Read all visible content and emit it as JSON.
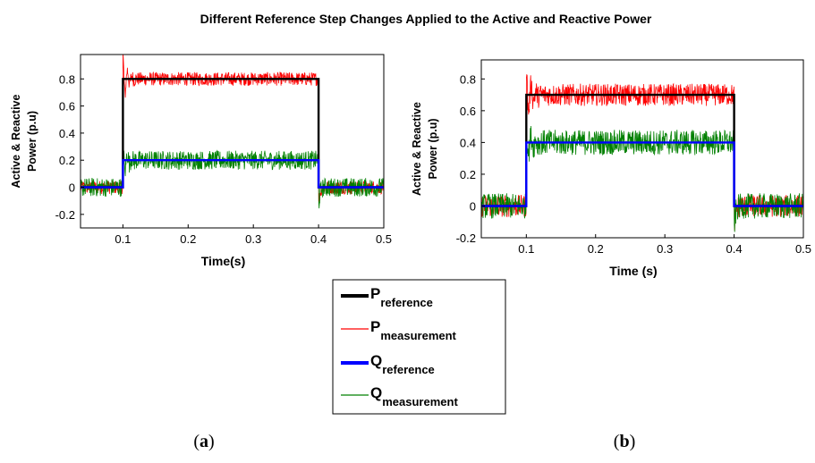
{
  "figure": {
    "title": "Different Reference Step Changes Applied to the Active and Reactive Power",
    "caption_a_open": "(",
    "caption_a_letter": "a",
    "caption_a_close": ")",
    "caption_b_open": "(",
    "caption_b_letter": "b",
    "caption_b_close": ")"
  },
  "legend": {
    "items": [
      {
        "main": "P",
        "sub": "reference",
        "color": "#000000"
      },
      {
        "main": "P",
        "sub": "measurement",
        "color": "#ff0000"
      },
      {
        "main": "Q",
        "sub": "reference",
        "color": "#0000ff"
      },
      {
        "main": "Q",
        "sub": "measurement",
        "color": "#008000"
      }
    ]
  },
  "chart_data": [
    {
      "type": "line",
      "panel": "a",
      "xlabel": "Time(s)",
      "ylabel_line1": "Active & Reactive",
      "ylabel_line2": "Power (p.u)",
      "xlim": [
        0.035,
        0.5
      ],
      "ylim": [
        -0.3,
        0.98
      ],
      "xticks": [
        0.1,
        0.2,
        0.3,
        0.4,
        0.5
      ],
      "xtick_labels": [
        "0.1",
        "0.2",
        "0.3",
        "0.4",
        "0.5"
      ],
      "yticks": [
        -0.2,
        0,
        0.2,
        0.4,
        0.6,
        0.8
      ],
      "ytick_labels": [
        "-0.2",
        "0",
        "0.2",
        "0.4",
        "0.6",
        "0.8"
      ],
      "grid": false,
      "series": [
        {
          "name": "P reference",
          "color": "#000000",
          "x": [
            0.035,
            0.1,
            0.1,
            0.4,
            0.4,
            0.5
          ],
          "y": [
            0,
            0,
            0.8,
            0.8,
            0,
            0
          ]
        },
        {
          "name": "P measurement",
          "color": "#ff0000",
          "steady_values": [
            0,
            0.8,
            0
          ],
          "switch_times": [
            0.1,
            0.4
          ],
          "overshoot_peak": 0.98,
          "ripple": 0.05
        },
        {
          "name": "Q reference",
          "color": "#0000ff",
          "x": [
            0.035,
            0.1,
            0.1,
            0.4,
            0.4,
            0.5
          ],
          "y": [
            0,
            0,
            0.2,
            0.2,
            0,
            0
          ]
        },
        {
          "name": "Q measurement",
          "color": "#008000",
          "steady_values": [
            0,
            0.2,
            0
          ],
          "switch_times": [
            0.1,
            0.4
          ],
          "overshoot_peak": 0.33,
          "ripple": 0.07
        }
      ]
    },
    {
      "type": "line",
      "panel": "b",
      "xlabel": "Time (s)",
      "ylabel_line1": "Active & Reactive",
      "ylabel_line2": "Power (p.u)",
      "xlim": [
        0.035,
        0.5
      ],
      "ylim": [
        -0.2,
        0.92
      ],
      "xticks": [
        0.1,
        0.2,
        0.3,
        0.4,
        0.5
      ],
      "xtick_labels": [
        "0.1",
        "0.2",
        "0.3",
        "0.4",
        "0.5"
      ],
      "yticks": [
        -0.2,
        0,
        0.2,
        0.4,
        0.6,
        0.8
      ],
      "ytick_labels": [
        "-0.2",
        "0",
        "0.2",
        "0.4",
        "0.6",
        "0.8"
      ],
      "grid": false,
      "series": [
        {
          "name": "P reference",
          "color": "#000000",
          "x": [
            0.035,
            0.1,
            0.1,
            0.4,
            0.4,
            0.5
          ],
          "y": [
            0,
            0,
            0.7,
            0.7,
            0,
            0
          ]
        },
        {
          "name": "P measurement",
          "color": "#ff0000",
          "steady_values": [
            0,
            0.7,
            0
          ],
          "switch_times": [
            0.1,
            0.4
          ],
          "overshoot_peak": 0.87,
          "ripple": 0.07
        },
        {
          "name": "Q reference",
          "color": "#0000ff",
          "x": [
            0.035,
            0.1,
            0.1,
            0.4,
            0.4,
            0.5
          ],
          "y": [
            0,
            0,
            0.4,
            0.4,
            0,
            0
          ]
        },
        {
          "name": "Q measurement",
          "color": "#008000",
          "steady_values": [
            0,
            0.4,
            0
          ],
          "switch_times": [
            0.1,
            0.4
          ],
          "overshoot_peak": 0.5,
          "ripple": 0.08
        }
      ]
    }
  ]
}
